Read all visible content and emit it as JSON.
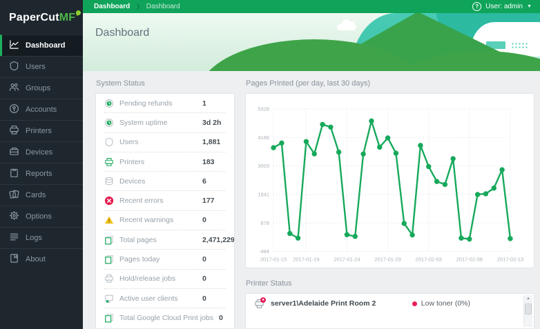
{
  "logo": {
    "part1": "PaperCut",
    "part2": "MF",
    "leaf_icon": "leaf-icon"
  },
  "topbar": {
    "breadcrumb": [
      "Dashboard",
      "Dashboard"
    ],
    "help_icon": "?",
    "user_label": "User: admin"
  },
  "banner": {
    "title": "Dashboard"
  },
  "sidebar": {
    "items": [
      {
        "label": "Dashboard",
        "icon": "dashboard-icon",
        "active": true
      },
      {
        "label": "Users",
        "icon": "users-icon",
        "active": false
      },
      {
        "label": "Groups",
        "icon": "groups-icon",
        "active": false
      },
      {
        "label": "Accounts",
        "icon": "accounts-icon",
        "active": false
      },
      {
        "label": "Printers",
        "icon": "printers-icon",
        "active": false
      },
      {
        "label": "Devices",
        "icon": "devices-icon",
        "active": false
      },
      {
        "label": "Reports",
        "icon": "reports-icon",
        "active": false
      },
      {
        "label": "Cards",
        "icon": "cards-icon",
        "active": false
      },
      {
        "label": "Options",
        "icon": "options-icon",
        "active": false
      },
      {
        "label": "Logs",
        "icon": "logs-icon",
        "active": false
      },
      {
        "label": "About",
        "icon": "about-icon",
        "active": false
      }
    ]
  },
  "system_status": {
    "title": "System Status",
    "rows": [
      {
        "icon": "clock-icon",
        "label": "Pending refunds",
        "value": "1"
      },
      {
        "icon": "clock-icon",
        "label": "System uptime",
        "value": "3d 2h"
      },
      {
        "icon": "user-shield-icon",
        "label": "Users",
        "value": "1,881"
      },
      {
        "icon": "printer-green-icon",
        "label": "Printers",
        "value": "183"
      },
      {
        "icon": "devices-stack-icon",
        "label": "Devices",
        "value": "6"
      },
      {
        "icon": "error-icon",
        "label": "Recent errors",
        "value": "177"
      },
      {
        "icon": "warning-icon",
        "label": "Recent warnings",
        "value": "0"
      },
      {
        "icon": "pages-icon",
        "label": "Total pages",
        "value": "2,471,229"
      },
      {
        "icon": "pages-icon",
        "label": "Pages today",
        "value": "0"
      },
      {
        "icon": "printer-gray-icon",
        "label": "Hold/release jobs",
        "value": "0"
      },
      {
        "icon": "client-icon",
        "label": "Active user clients",
        "value": "0"
      },
      {
        "icon": "pages-icon",
        "label": "Total Google Cloud Print jobs",
        "value": "0"
      }
    ]
  },
  "chart_data": {
    "type": "line",
    "title": "Pages Printed (per day, last 30 days)",
    "xlabel": "",
    "ylabel": "",
    "ylim": [
      -484,
      5328
    ],
    "grid": true,
    "legend": "none",
    "line_color": "#17a95b",
    "x": [
      "2017-01-15",
      "2017-01-16",
      "2017-01-17",
      "2017-01-18",
      "2017-01-19",
      "2017-01-20",
      "2017-01-21",
      "2017-01-22",
      "2017-01-23",
      "2017-01-24",
      "2017-01-25",
      "2017-01-26",
      "2017-01-27",
      "2017-01-28",
      "2017-01-29",
      "2017-01-30",
      "2017-01-31",
      "2017-02-01",
      "2017-02-02",
      "2017-02-03",
      "2017-02-04",
      "2017-02-05",
      "2017-02-06",
      "2017-02-07",
      "2017-02-08",
      "2017-02-09",
      "2017-02-10",
      "2017-02-11",
      "2017-02-12",
      "2017-02-13"
    ],
    "values": [
      3750,
      3940,
      250,
      60,
      4000,
      3500,
      4700,
      4590,
      3570,
      200,
      130,
      3490,
      4840,
      3770,
      4150,
      3525,
      660,
      190,
      3840,
      2980,
      2370,
      2250,
      3300,
      60,
      20,
      1840,
      1870,
      2100,
      2850,
      40
    ],
    "y_ticks": [
      5328,
      4166,
      3003,
      1841,
      678,
      -484
    ],
    "x_tick_indices": [
      0,
      4,
      9,
      14,
      19,
      24,
      29
    ],
    "x_tick_labels": [
      "2017-01-15",
      "2017-01-19",
      "2017-01-24",
      "2017-01-29",
      "2017-02-03",
      "2017-02-08",
      "2017-02-13"
    ]
  },
  "printer_status": {
    "title": "Printer Status",
    "rows": [
      {
        "icon": "printer-alert-icon",
        "name": "server1\\Adelaide Print Room 2",
        "status": "Low toner (0%)",
        "status_color": "#ea1e5a"
      }
    ],
    "scrollbar_up": "▲"
  },
  "colors": {
    "topbar_green": "#0fa45a",
    "accent_green": "#1db15f",
    "sidebar_bg": "#1e272e",
    "error_red": "#e51e4d",
    "warning_yellow": "#f2c21c",
    "low_toner_pink": "#ea1e5a"
  }
}
